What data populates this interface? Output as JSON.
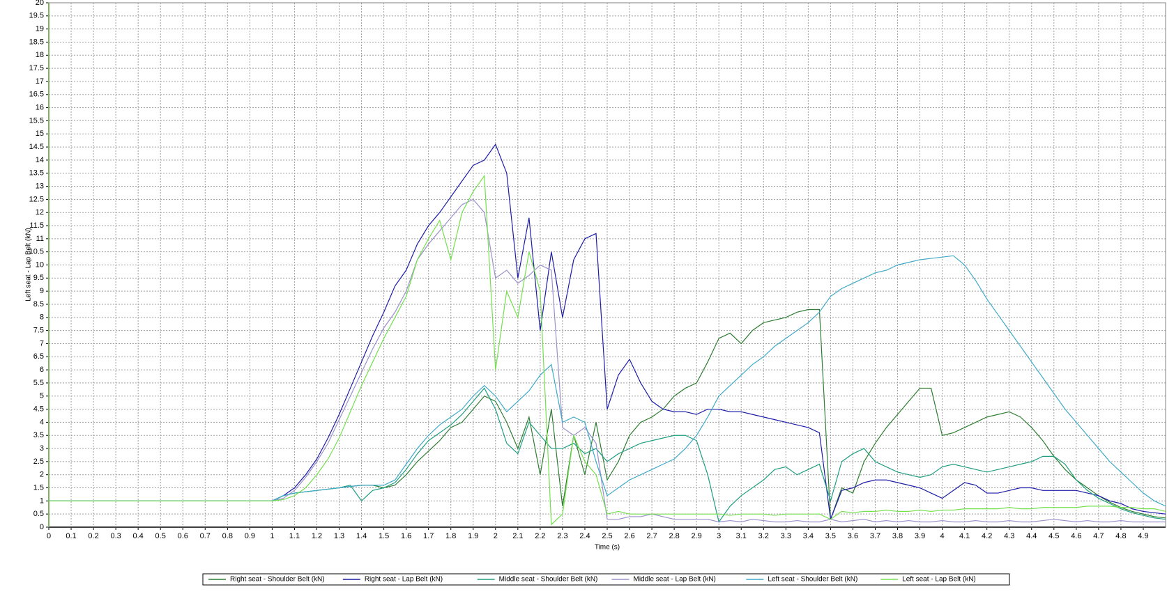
{
  "chart_data": {
    "type": "line",
    "y_label": "Left seat - Lap Belt (kN)",
    "x_label": "Time (s)",
    "grid": true,
    "xlim": [
      0,
      5
    ],
    "ylim": [
      0,
      20
    ],
    "xticks": [
      0,
      0.1,
      0.2,
      0.3,
      0.4,
      0.5,
      0.6,
      0.7,
      0.8,
      0.9,
      1,
      1.1,
      1.2,
      1.3,
      1.4,
      1.5,
      1.6,
      1.7,
      1.8,
      1.9,
      2,
      2.1,
      2.2,
      2.3,
      2.4,
      2.5,
      2.6,
      2.7,
      2.8,
      2.9,
      3,
      3.1,
      3.2,
      3.3,
      3.4,
      3.5,
      3.6,
      3.7,
      3.8,
      3.9,
      4,
      4.1,
      4.2,
      4.3,
      4.4,
      4.5,
      4.6,
      4.7,
      4.8,
      4.9
    ],
    "yticks": [
      0,
      0.5,
      1,
      1.5,
      2,
      2.5,
      3,
      3.5,
      4,
      4.5,
      5,
      5.5,
      6,
      6.5,
      7,
      7.5,
      8,
      8.5,
      9,
      9.5,
      10,
      10.5,
      11,
      11.5,
      12,
      12.5,
      13,
      13.5,
      14,
      14.5,
      15,
      15.5,
      16,
      16.5,
      17,
      17.5,
      18,
      18.5,
      19,
      19.5,
      20
    ],
    "x": [
      0,
      0.05,
      0.1,
      0.15,
      0.2,
      0.25,
      0.3,
      0.35,
      0.4,
      0.45,
      0.5,
      0.55,
      0.6,
      0.65,
      0.7,
      0.75,
      0.8,
      0.85,
      0.9,
      0.95,
      1,
      1.05,
      1.1,
      1.15,
      1.2,
      1.25,
      1.3,
      1.35,
      1.4,
      1.45,
      1.5,
      1.55,
      1.6,
      1.65,
      1.7,
      1.75,
      1.8,
      1.85,
      1.9,
      1.95,
      2,
      2.05,
      2.1,
      2.15,
      2.2,
      2.25,
      2.3,
      2.35,
      2.4,
      2.45,
      2.5,
      2.55,
      2.6,
      2.65,
      2.7,
      2.75,
      2.8,
      2.85,
      2.9,
      2.95,
      3,
      3.05,
      3.1,
      3.15,
      3.2,
      3.25,
      3.3,
      3.35,
      3.4,
      3.45,
      3.5,
      3.55,
      3.6,
      3.65,
      3.7,
      3.75,
      3.8,
      3.85,
      3.9,
      3.95,
      4,
      4.05,
      4.1,
      4.15,
      4.2,
      4.25,
      4.3,
      4.35,
      4.4,
      4.45,
      4.5,
      4.55,
      4.6,
      4.65,
      4.7,
      4.75,
      4.8,
      4.85,
      4.9,
      4.95,
      5
    ],
    "series": [
      {
        "name": "Right seat - Shoulder Belt (kN)",
        "color": "#2e7d32",
        "values": [
          1,
          1,
          1,
          1,
          1,
          1,
          1,
          1,
          1,
          1,
          1,
          1,
          1,
          1,
          1,
          1,
          1,
          1,
          1,
          1,
          1,
          1.2,
          1.3,
          1.35,
          1.4,
          1.45,
          1.5,
          1.55,
          1.6,
          1.6,
          1.5,
          1.6,
          2.0,
          2.5,
          2.9,
          3.3,
          3.8,
          4.0,
          4.5,
          5.0,
          4.8,
          4.0,
          3.0,
          4.2,
          2.0,
          4.5,
          0.8,
          3.5,
          2.0,
          4.0,
          1.8,
          2.5,
          3.5,
          4.0,
          4.2,
          4.5,
          5.0,
          5.3,
          5.5,
          6.3,
          7.2,
          7.4,
          7.0,
          7.5,
          7.8,
          7.9,
          8.0,
          8.2,
          8.3,
          8.3,
          0.3,
          1.5,
          1.3,
          2.5,
          3.2,
          3.8,
          4.3,
          4.8,
          5.3,
          5.3,
          3.5,
          3.6,
          3.8,
          4.0,
          4.2,
          4.3,
          4.4,
          4.2,
          3.8,
          3.3,
          2.7,
          2.2,
          1.8,
          1.5,
          1.2,
          0.95,
          0.75,
          0.6,
          0.5,
          0.4,
          0.35
        ]
      },
      {
        "name": "Right seat - Lap Belt (kN)",
        "color": "#1c1ca8",
        "values": [
          1,
          1,
          1,
          1,
          1,
          1,
          1,
          1,
          1,
          1,
          1,
          1,
          1,
          1,
          1,
          1,
          1,
          1,
          1,
          1,
          1,
          1.2,
          1.5,
          2.0,
          2.6,
          3.4,
          4.3,
          5.3,
          6.3,
          7.3,
          8.2,
          9.2,
          9.8,
          10.8,
          11.5,
          12.0,
          12.6,
          13.2,
          13.8,
          14.0,
          14.6,
          13.5,
          9.5,
          11.8,
          7.5,
          10.5,
          8.0,
          10.2,
          11.0,
          11.2,
          4.5,
          5.8,
          6.4,
          5.5,
          4.8,
          4.5,
          4.4,
          4.4,
          4.3,
          4.5,
          4.5,
          4.4,
          4.4,
          4.3,
          4.2,
          4.1,
          4.0,
          3.9,
          3.8,
          3.6,
          0.3,
          1.4,
          1.5,
          1.7,
          1.8,
          1.8,
          1.7,
          1.6,
          1.5,
          1.3,
          1.1,
          1.4,
          1.7,
          1.6,
          1.3,
          1.3,
          1.4,
          1.5,
          1.5,
          1.4,
          1.4,
          1.4,
          1.4,
          1.3,
          1.2,
          1.0,
          0.9,
          0.7,
          0.6,
          0.55,
          0.5
        ]
      },
      {
        "name": "Middle seat - Shoulder Belt (kN)",
        "color": "#1f9e80",
        "values": [
          1,
          1,
          1,
          1,
          1,
          1,
          1,
          1,
          1,
          1,
          1,
          1,
          1,
          1,
          1,
          1,
          1,
          1,
          1,
          1,
          1,
          1.2,
          1.3,
          1.35,
          1.4,
          1.45,
          1.5,
          1.6,
          1.0,
          1.4,
          1.5,
          1.7,
          2.2,
          2.8,
          3.3,
          3.6,
          3.9,
          4.3,
          4.8,
          5.3,
          4.5,
          3.2,
          2.8,
          4.0,
          3.5,
          3.0,
          3.0,
          3.2,
          2.8,
          3.0,
          2.5,
          2.8,
          3.0,
          3.2,
          3.3,
          3.4,
          3.5,
          3.5,
          3.3,
          2.0,
          0.2,
          0.8,
          1.2,
          1.5,
          1.8,
          2.2,
          2.3,
          2.0,
          2.2,
          2.4,
          1.0,
          2.5,
          2.8,
          3.0,
          2.5,
          2.3,
          2.1,
          2.0,
          1.9,
          2.0,
          2.3,
          2.4,
          2.3,
          2.2,
          2.1,
          2.2,
          2.3,
          2.4,
          2.5,
          2.7,
          2.7,
          2.4,
          1.8,
          1.4,
          1.1,
          0.9,
          0.7,
          0.55,
          0.45,
          0.35,
          0.3
        ]
      },
      {
        "name": "Middle seat - Lap Belt (kN)",
        "color": "#9a90cc",
        "values": [
          1,
          1,
          1,
          1,
          1,
          1,
          1,
          1,
          1,
          1,
          1,
          1,
          1,
          1,
          1,
          1,
          1,
          1,
          1,
          1,
          1,
          1.1,
          1.4,
          1.9,
          2.5,
          3.2,
          4.1,
          5.0,
          5.9,
          6.8,
          7.6,
          8.2,
          9.0,
          10.2,
          10.8,
          11.3,
          11.8,
          12.3,
          12.5,
          12.0,
          9.5,
          9.8,
          9.3,
          9.6,
          10.0,
          9.8,
          3.8,
          3.5,
          3.8,
          3.2,
          0.3,
          0.3,
          0.4,
          0.4,
          0.5,
          0.4,
          0.3,
          0.3,
          0.3,
          0.3,
          0.2,
          0.25,
          0.2,
          0.3,
          0.25,
          0.2,
          0.2,
          0.25,
          0.2,
          0.2,
          0.3,
          0.2,
          0.25,
          0.3,
          0.2,
          0.25,
          0.2,
          0.25,
          0.2,
          0.2,
          0.25,
          0.2,
          0.2,
          0.25,
          0.2,
          0.2,
          0.25,
          0.2,
          0.2,
          0.25,
          0.3,
          0.25,
          0.2,
          0.25,
          0.2,
          0.2,
          0.25,
          0.2,
          0.2,
          0.2,
          0.2
        ]
      },
      {
        "name": "Left seat - Shoulder Belt (kN)",
        "color": "#3fa9c9",
        "values": [
          1,
          1,
          1,
          1,
          1,
          1,
          1,
          1,
          1,
          1,
          1,
          1,
          1,
          1,
          1,
          1,
          1,
          1,
          1,
          1,
          1,
          1.2,
          1.3,
          1.35,
          1.4,
          1.45,
          1.5,
          1.55,
          1.6,
          1.6,
          1.6,
          1.8,
          2.4,
          3.0,
          3.5,
          3.9,
          4.2,
          4.5,
          5.0,
          5.4,
          5.0,
          4.4,
          4.8,
          5.2,
          5.8,
          6.2,
          4.0,
          4.2,
          4.0,
          2.5,
          1.2,
          1.5,
          1.8,
          2.0,
          2.2,
          2.4,
          2.6,
          3.0,
          3.5,
          4.2,
          5.0,
          5.4,
          5.8,
          6.2,
          6.5,
          6.9,
          7.2,
          7.5,
          7.8,
          8.2,
          8.8,
          9.1,
          9.3,
          9.5,
          9.7,
          9.8,
          10.0,
          10.1,
          10.2,
          10.25,
          10.3,
          10.35,
          10.0,
          9.4,
          8.7,
          8.1,
          7.5,
          6.9,
          6.3,
          5.7,
          5.1,
          4.5,
          4.0,
          3.5,
          3.0,
          2.5,
          2.1,
          1.7,
          1.3,
          1.0,
          0.8
        ]
      },
      {
        "name": "Left seat - Lap Belt (kN)",
        "color": "#74e04e",
        "values": [
          1,
          1,
          1,
          1,
          1,
          1,
          1,
          1,
          1,
          1,
          1,
          1,
          1,
          1,
          1,
          1,
          1,
          1,
          1,
          1,
          1,
          1.05,
          1.2,
          1.5,
          2.0,
          2.6,
          3.4,
          4.4,
          5.4,
          6.3,
          7.2,
          8.0,
          8.8,
          10.2,
          11.0,
          11.7,
          10.2,
          12.0,
          12.8,
          13.4,
          6.0,
          9.0,
          8.0,
          10.5,
          9.0,
          0.1,
          0.5,
          3.5,
          2.5,
          2.0,
          0.5,
          0.6,
          0.5,
          0.5,
          0.5,
          0.5,
          0.5,
          0.5,
          0.5,
          0.5,
          0.5,
          0.45,
          0.5,
          0.5,
          0.5,
          0.45,
          0.5,
          0.5,
          0.5,
          0.5,
          0.3,
          0.6,
          0.55,
          0.6,
          0.6,
          0.65,
          0.6,
          0.6,
          0.65,
          0.6,
          0.65,
          0.65,
          0.7,
          0.7,
          0.7,
          0.7,
          0.75,
          0.7,
          0.7,
          0.75,
          0.75,
          0.75,
          0.75,
          0.8,
          0.8,
          0.8,
          0.75,
          0.75,
          0.7,
          0.7,
          0.6
        ]
      }
    ]
  }
}
